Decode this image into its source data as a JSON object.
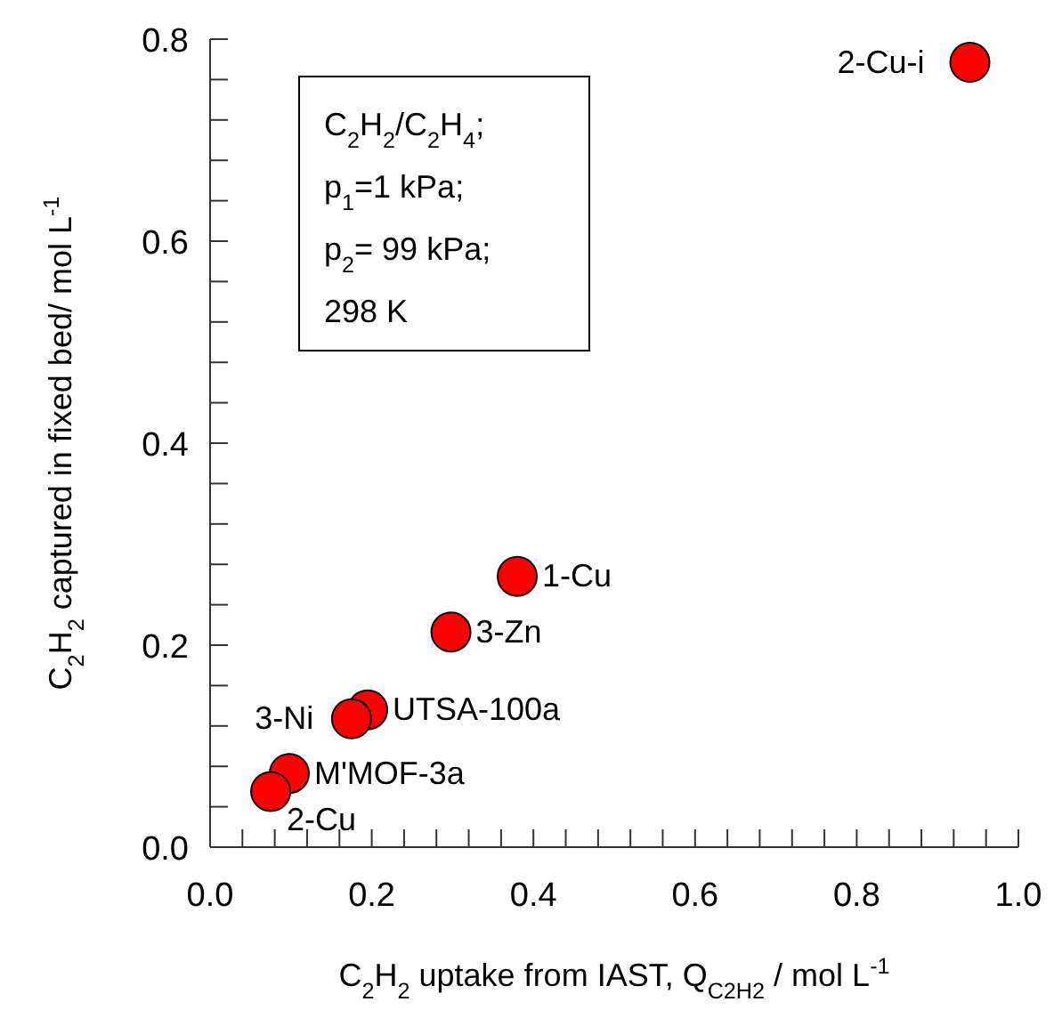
{
  "chart_data": {
    "type": "scatter",
    "xlabel": "C$_{2}$H$_{2}$ uptake from IAST, Q$_{C2H2}$ / mol L$^{-1}$",
    "ylabel": "C$_{2}$H$_{2}$ captured in fixed bed/ mol L$^{-1}$",
    "x": [
      0.94,
      0.38,
      0.298,
      0.195,
      0.175,
      0.098,
      0.075
    ],
    "series": [
      {
        "color": "#ff0000",
        "values": [
          0.777,
          0.268,
          0.213,
          0.136,
          0.127,
          0.073,
          0.055
        ]
      }
    ],
    "marker": "circle",
    "grid": false,
    "xlim": [
      0,
      1
    ],
    "ylim": [
      0,
      0.8
    ],
    "xticks": [
      {
        "value": 0,
        "label": "0.0"
      },
      {
        "value": 0.04,
        "label": null
      },
      {
        "value": 0.08,
        "label": null
      },
      {
        "value": 0.12,
        "label": null
      },
      {
        "value": 0.16,
        "label": null
      },
      {
        "value": 0.2,
        "label": "0.2"
      },
      {
        "value": 0.24,
        "label": null
      },
      {
        "value": 0.28,
        "label": null
      },
      {
        "value": 0.32,
        "label": null
      },
      {
        "value": 0.36,
        "label": null
      },
      {
        "value": 0.4,
        "label": "0.4"
      },
      {
        "value": 0.44,
        "label": null
      },
      {
        "value": 0.48,
        "label": null
      },
      {
        "value": 0.52,
        "label": null
      },
      {
        "value": 0.56,
        "label": null
      },
      {
        "value": 0.6,
        "label": "0.6"
      },
      {
        "value": 0.64,
        "label": null
      },
      {
        "value": 0.68,
        "label": null
      },
      {
        "value": 0.72,
        "label": null
      },
      {
        "value": 0.76,
        "label": null
      },
      {
        "value": 0.8,
        "label": "0.8"
      },
      {
        "value": 0.84,
        "label": null
      },
      {
        "value": 0.88,
        "label": null
      },
      {
        "value": 0.92,
        "label": null
      },
      {
        "value": 0.96,
        "label": null
      },
      {
        "value": 1,
        "label": "1.0"
      }
    ],
    "yticks": [
      {
        "value": 0,
        "label": "0.0"
      },
      {
        "value": 0.04,
        "label": null
      },
      {
        "value": 0.08,
        "label": null
      },
      {
        "value": 0.12,
        "label": null
      },
      {
        "value": 0.16,
        "label": null
      },
      {
        "value": 0.2,
        "label": "0.2"
      },
      {
        "value": 0.24,
        "label": null
      },
      {
        "value": 0.28,
        "label": null
      },
      {
        "value": 0.32,
        "label": null
      },
      {
        "value": 0.36,
        "label": null
      },
      {
        "value": 0.4,
        "label": "0.4"
      },
      {
        "value": 0.44,
        "label": null
      },
      {
        "value": 0.48,
        "label": null
      },
      {
        "value": 0.52,
        "label": null
      },
      {
        "value": 0.56,
        "label": null
      },
      {
        "value": 0.6,
        "label": "0.6"
      },
      {
        "value": 0.64,
        "label": null
      },
      {
        "value": 0.68,
        "label": null
      },
      {
        "value": 0.72,
        "label": null
      },
      {
        "value": 0.76,
        "label": null
      },
      {
        "value": 0.8,
        "label": "0.8"
      }
    ],
    "annotations": [
      "C$_{2}$H$_{2}$/C$_{2}$H$_{4}$;",
      "p$_{1}$=1  kPa;",
      "p$_{2}$= 99  kPa;",
      "298 K",
      {
        "text": "2-Cu-i",
        "x": 0.94,
        "y": 0.777
      },
      {
        "text": "1-Cu",
        "x": 0.38,
        "y": 0.268
      },
      {
        "text": "3-Zn",
        "x": 0.298,
        "y": 0.213
      },
      {
        "text": "UTSA-100a",
        "x": 0.195,
        "y": 0.136
      },
      {
        "text": "3-Ni",
        "x": 0.175,
        "y": 0.127
      },
      {
        "text": "M'MOF-3a",
        "x": 0.098,
        "y": 0.073
      },
      {
        "text": "2-Cu",
        "x": 0.075,
        "y": 0.055
      }
    ]
  }
}
